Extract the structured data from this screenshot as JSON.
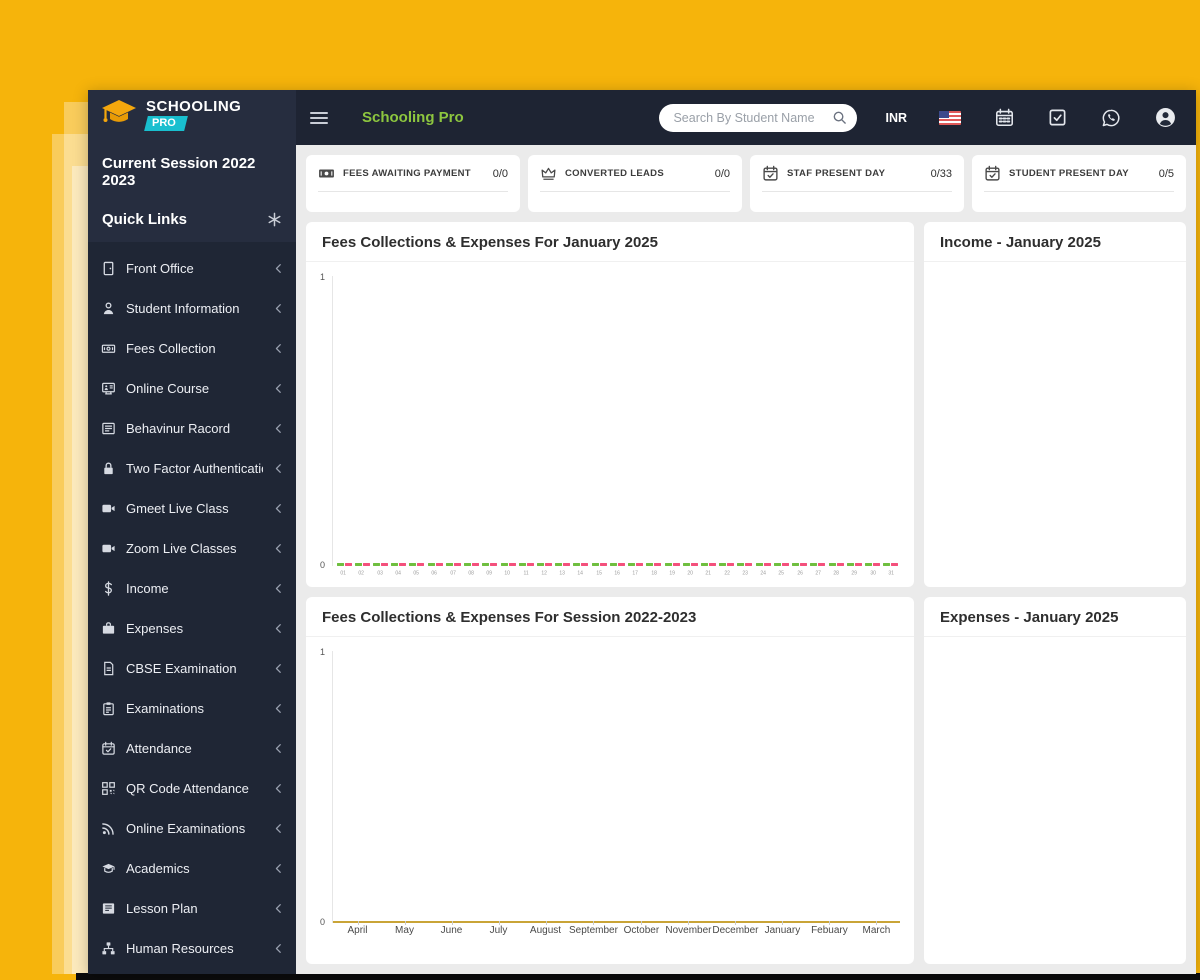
{
  "theme": {
    "background": "#F6B40B",
    "header_bg": "#1E2433",
    "sidebar_bg": "#262D3F",
    "menu_bg": "#1F2635",
    "content_bg": "#EBEBEB",
    "accent_green": "#8DC63F",
    "logo_teal": "#19BFCF",
    "logo_gold": "#F4A70D",
    "series_green": "#6FBF3F",
    "series_pink": "#F4507C",
    "series_gold": "#C9A437"
  },
  "window": {
    "brand": {
      "line1": "SCHOOLING",
      "line2": "PRO"
    },
    "header": {
      "app_title": "Schooling Pro",
      "search_placeholder": "Search By Student Name",
      "currency": "INR"
    },
    "sidebar": {
      "session_label": "Current Session 2022 2023",
      "quick_links_label": "Quick Links",
      "menu": [
        {
          "icon": "front-office",
          "label": "Front Office"
        },
        {
          "icon": "student-information",
          "label": "Student Information"
        },
        {
          "icon": "fees-collection",
          "label": "Fees Collection"
        },
        {
          "icon": "online-course",
          "label": "Online Course"
        },
        {
          "icon": "behaviour-record",
          "label": "Behavinur Racord"
        },
        {
          "icon": "two-factor-auth",
          "label": "Two Factor Authentication"
        },
        {
          "icon": "video-camera",
          "label": "Gmeet Live Class"
        },
        {
          "icon": "video-camera",
          "label": "Zoom Live Classes"
        },
        {
          "icon": "income",
          "label": "Income"
        },
        {
          "icon": "expenses",
          "label": "Expenses"
        },
        {
          "icon": "cbse-examination",
          "label": "CBSE Examination"
        },
        {
          "icon": "examinations",
          "label": "Examinations"
        },
        {
          "icon": "attendance",
          "label": "Attendance"
        },
        {
          "icon": "qr-code",
          "label": "QR Code Attendance"
        },
        {
          "icon": "online-examinations",
          "label": "Online Examinations"
        },
        {
          "icon": "academics",
          "label": "Academics"
        },
        {
          "icon": "lesson-plan",
          "label": "Lesson Plan"
        },
        {
          "icon": "human-resources",
          "label": "Human Resources"
        }
      ]
    },
    "stat_cards": [
      {
        "icon": "banknote",
        "label": "FEES AWAITING PAYMENT",
        "value": "0/0"
      },
      {
        "icon": "crown",
        "label": "CONVERTED LEADS",
        "value": "0/0"
      },
      {
        "icon": "calendar-check",
        "label": "STAF PRESENT DAY",
        "value": "0/33"
      },
      {
        "icon": "calendar-check",
        "label": "STUDENT PRESENT DAY",
        "value": "0/5"
      }
    ],
    "panels": {
      "income_title": "Income - January 2025",
      "expenses_title": "Expenses - January 2025"
    }
  },
  "chart_data": [
    {
      "type": "bar",
      "title": "Fees Collections & Expenses For January 2025",
      "categories": [
        "01",
        "02",
        "03",
        "04",
        "05",
        "06",
        "07",
        "08",
        "09",
        "10",
        "11",
        "12",
        "13",
        "14",
        "15",
        "16",
        "17",
        "18",
        "19",
        "20",
        "21",
        "22",
        "23",
        "24",
        "25",
        "26",
        "27",
        "28",
        "29",
        "30",
        "31"
      ],
      "series": [
        {
          "name": "Fees Collections",
          "color": "#6FBF3F",
          "values": [
            0,
            0,
            0,
            0,
            0,
            0,
            0,
            0,
            0,
            0,
            0,
            0,
            0,
            0,
            0,
            0,
            0,
            0,
            0,
            0,
            0,
            0,
            0,
            0,
            0,
            0,
            0,
            0,
            0,
            0,
            0
          ]
        },
        {
          "name": "Expenses",
          "color": "#F4507C",
          "values": [
            0,
            0,
            0,
            0,
            0,
            0,
            0,
            0,
            0,
            0,
            0,
            0,
            0,
            0,
            0,
            0,
            0,
            0,
            0,
            0,
            0,
            0,
            0,
            0,
            0,
            0,
            0,
            0,
            0,
            0,
            0
          ]
        }
      ],
      "xlabel": "",
      "ylabel": "",
      "ylim": [
        0,
        1
      ],
      "yticks": [
        0,
        1
      ],
      "grid": false,
      "legend": false
    },
    {
      "type": "line",
      "title": "Fees Collections & Expenses For Session 2022-2023",
      "categories": [
        "April",
        "May",
        "June",
        "July",
        "August",
        "September",
        "October",
        "November",
        "December",
        "January",
        "Febuary",
        "March"
      ],
      "series": [
        {
          "name": "Fees Collections & Expenses",
          "color": "#C9A437",
          "values": [
            0,
            0,
            0,
            0,
            0,
            0,
            0,
            0,
            0,
            0,
            0,
            0
          ]
        }
      ],
      "xlabel": "",
      "ylabel": "",
      "ylim": [
        0,
        1
      ],
      "yticks": [
        0,
        1
      ],
      "grid": false,
      "legend": false
    }
  ]
}
